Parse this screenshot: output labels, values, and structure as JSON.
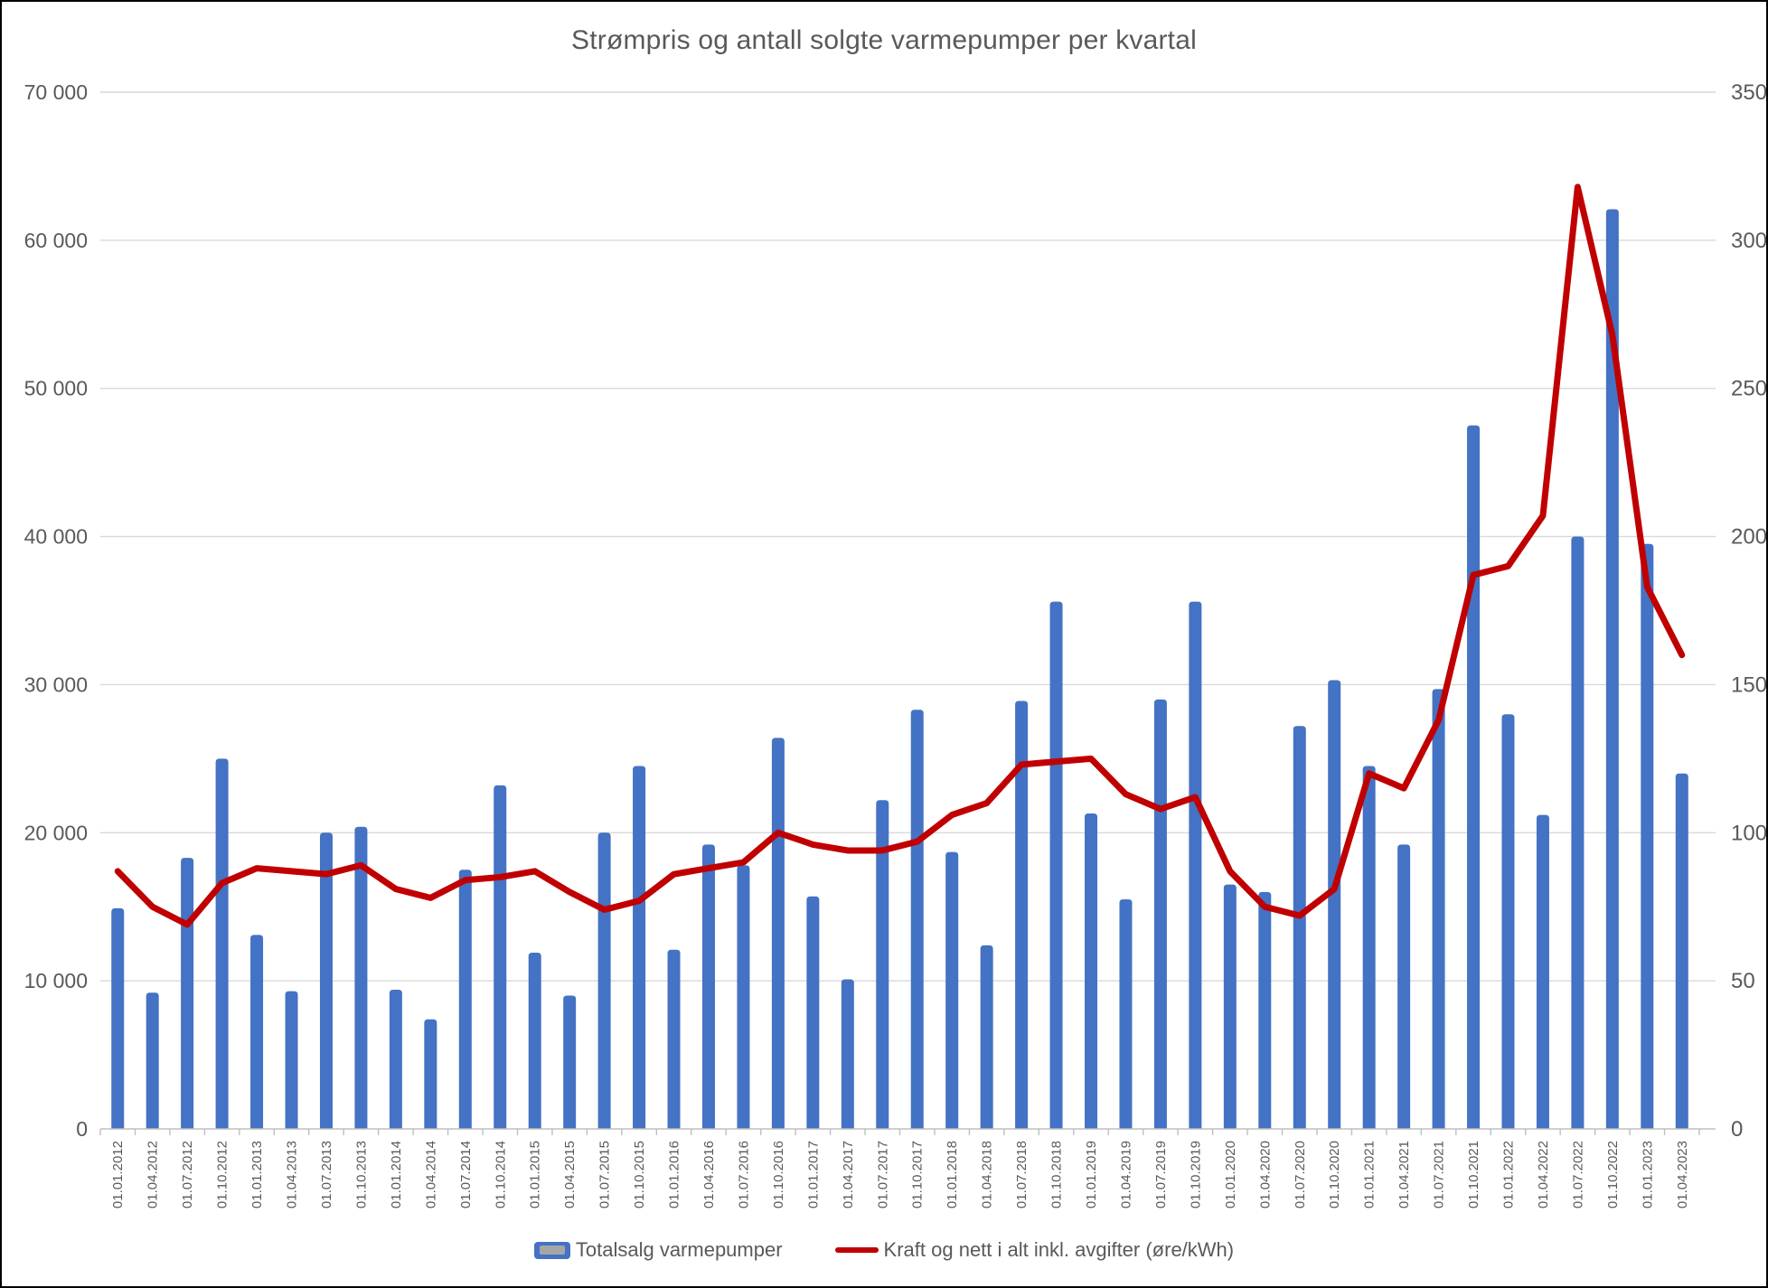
{
  "chart_data": {
    "type": "bar+line combo",
    "title": "Strømpris og antall solgte varmepumper per kvartal",
    "grid": true,
    "legend_position": "bottom",
    "categories": [
      "01.01.2012",
      "01.04.2012",
      "01.07.2012",
      "01.10.2012",
      "01.01.2013",
      "01.04.2013",
      "01.07.2013",
      "01.10.2013",
      "01.01.2014",
      "01.04.2014",
      "01.07.2014",
      "01.10.2014",
      "01.01.2015",
      "01.04.2015",
      "01.07.2015",
      "01.10.2015",
      "01.01.2016",
      "01.04.2016",
      "01.07.2016",
      "01.10.2016",
      "01.01.2017",
      "01.04.2017",
      "01.07.2017",
      "01.10.2017",
      "01.01.2018",
      "01.04.2018",
      "01.07.2018",
      "01.10.2018",
      "01.01.2019",
      "01.04.2019",
      "01.07.2019",
      "01.10.2019",
      "01.01.2020",
      "01.04.2020",
      "01.07.2020",
      "01.10.2020",
      "01.01.2021",
      "01.04.2021",
      "01.07.2021",
      "01.10.2021",
      "01.01.2022",
      "01.04.2022",
      "01.07.2022",
      "01.10.2022",
      "01.01.2023",
      "01.04.2023"
    ],
    "series": [
      {
        "name": "Totalsalg varmepumper",
        "type": "bar",
        "axis": "left",
        "color": "#4472C4",
        "values": [
          14900,
          9200,
          18300,
          25000,
          13100,
          9300,
          20000,
          20400,
          9400,
          7400,
          17500,
          23200,
          11900,
          9000,
          20000,
          24500,
          12100,
          19200,
          17800,
          26400,
          15700,
          10100,
          22200,
          28300,
          18700,
          12400,
          28900,
          35600,
          21300,
          15500,
          29000,
          35600,
          16500,
          16000,
          27200,
          30300,
          24500,
          19200,
          29700,
          47500,
          28000,
          21200,
          40000,
          62100,
          39500,
          24000
        ]
      },
      {
        "name": "Kraft og nett i alt inkl. avgifter (øre/kWh)",
        "type": "line",
        "axis": "right",
        "color": "#C00000",
        "values": [
          87,
          75,
          69,
          83,
          88,
          87,
          86,
          89,
          81,
          78,
          84,
          85,
          87,
          80,
          74,
          77,
          86,
          88,
          90,
          100,
          96,
          94,
          94,
          97,
          106,
          110,
          123,
          124,
          125,
          113,
          108,
          112,
          87,
          75,
          72,
          81,
          120,
          115,
          138,
          187,
          190,
          207,
          318,
          268,
          183,
          160
        ]
      }
    ],
    "left_axis": {
      "min": 0,
      "max": 70000,
      "step": 10000,
      "tick_labels": [
        "0",
        "10 000",
        "20 000",
        "30 000",
        "40 000",
        "50 000",
        "60 000",
        "70 000"
      ]
    },
    "right_axis": {
      "min": 0,
      "max": 350,
      "step": 50,
      "tick_labels": [
        "0",
        "50",
        "100",
        "150",
        "200",
        "250",
        "300",
        "350"
      ]
    }
  },
  "colors": {
    "bar": "#4472C4",
    "line": "#C00000",
    "gridline": "#D9D9D9",
    "axis_line": "#BFBFBF",
    "tick": "#BFBFBF",
    "text": "#595959",
    "legend_swatch_inner": "#A6A6A6",
    "background": "#FFFFFF",
    "border": "#000000"
  }
}
